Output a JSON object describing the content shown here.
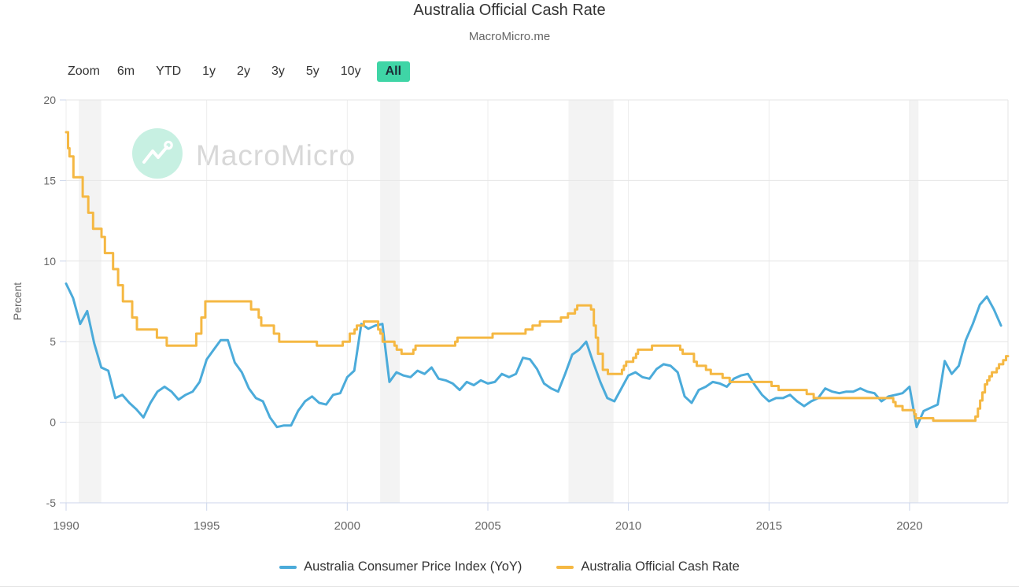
{
  "header": {
    "title": "Australia Official Cash Rate",
    "subtitle": "MacroMicro.me"
  },
  "range_selector": {
    "zoom_label": "Zoom",
    "buttons": [
      "6m",
      "YTD",
      "1y",
      "2y",
      "3y",
      "5y",
      "10y",
      "All"
    ],
    "selected": "All",
    "selected_bg": "#3fd5a6",
    "selected_text": "#1c2b36"
  },
  "watermark": {
    "text": "MacroMicro",
    "icon": "macromicro-logo-icon",
    "icon_bg": "#c7f0e2",
    "text_color": "#d8d8d8"
  },
  "colors": {
    "cpi_line": "#4babda",
    "cash_rate_line": "#f5b843",
    "plot_band": "#efefef",
    "grid_h": "#e6e6e6",
    "grid_v": "#ededed",
    "axis_line": "#ccd6eb",
    "tick_label": "#666666",
    "right_border": "#e6e6e6"
  },
  "chart_data": {
    "type": "line",
    "title": "Australia Official Cash Rate",
    "subtitle": "MacroMicro.me",
    "xlabel": "",
    "ylabel": "Percent",
    "ylim": [
      -5,
      20
    ],
    "xlim": [
      1990,
      2023.5
    ],
    "yticks": [
      20,
      15,
      10,
      5,
      0,
      -5
    ],
    "xticks": [
      1990,
      1995,
      2000,
      2005,
      2010,
      2015,
      2020
    ],
    "grid": true,
    "legend_position": "bottom",
    "plot_bands": [
      [
        1990.45,
        1991.25
      ],
      [
        2001.17,
        2001.87
      ],
      [
        2007.87,
        2009.47
      ],
      [
        2020.0,
        2020.32
      ]
    ],
    "series": [
      {
        "name": "Australia Consumer Price Index (YoY)",
        "color": "#4babda",
        "interpolation": "linear",
        "unit": "percent",
        "x_start": 1990,
        "x_step": 0.25,
        "values": [
          8.6,
          7.7,
          6.1,
          6.9,
          4.9,
          3.4,
          3.2,
          1.5,
          1.7,
          1.2,
          0.8,
          0.3,
          1.2,
          1.9,
          2.2,
          1.9,
          1.4,
          1.7,
          1.9,
          2.5,
          3.9,
          4.5,
          5.1,
          5.1,
          3.7,
          3.1,
          2.1,
          1.5,
          1.3,
          0.3,
          -0.3,
          -0.2,
          -0.2,
          0.7,
          1.3,
          1.6,
          1.2,
          1.1,
          1.7,
          1.8,
          2.8,
          3.2,
          6.1,
          5.8,
          6.0,
          6.1,
          2.5,
          3.1,
          2.9,
          2.8,
          3.2,
          3.0,
          3.4,
          2.7,
          2.6,
          2.4,
          2.0,
          2.5,
          2.3,
          2.6,
          2.4,
          2.5,
          3.0,
          2.8,
          3.0,
          4.0,
          3.9,
          3.3,
          2.4,
          2.1,
          1.9,
          3.0,
          4.2,
          4.5,
          5.0,
          3.7,
          2.5,
          1.5,
          1.3,
          2.1,
          2.9,
          3.1,
          2.8,
          2.7,
          3.3,
          3.6,
          3.5,
          3.1,
          1.6,
          1.2,
          2.0,
          2.2,
          2.5,
          2.4,
          2.2,
          2.7,
          2.9,
          3.0,
          2.3,
          1.7,
          1.3,
          1.5,
          1.5,
          1.7,
          1.3,
          1.0,
          1.3,
          1.5,
          2.1,
          1.9,
          1.8,
          1.9,
          1.9,
          2.1,
          1.9,
          1.8,
          1.3,
          1.6,
          1.7,
          1.8,
          2.2,
          -0.3,
          0.7,
          0.9,
          1.1,
          3.8,
          3.0,
          3.5,
          5.1,
          6.1,
          7.3,
          7.8,
          7.0,
          6.0
        ]
      },
      {
        "name": "Australia Official Cash Rate",
        "color": "#f5b843",
        "interpolation": "step-after",
        "unit": "percent",
        "points": [
          [
            1990.0,
            18.0
          ],
          [
            1990.07,
            17.0
          ],
          [
            1990.12,
            16.5
          ],
          [
            1990.26,
            15.2
          ],
          [
            1990.59,
            14.0
          ],
          [
            1990.79,
            13.0
          ],
          [
            1990.96,
            12.0
          ],
          [
            1991.26,
            11.5
          ],
          [
            1991.38,
            10.5
          ],
          [
            1991.67,
            9.5
          ],
          [
            1991.85,
            8.5
          ],
          [
            1992.02,
            7.5
          ],
          [
            1992.35,
            6.5
          ],
          [
            1992.52,
            5.75
          ],
          [
            1993.23,
            5.25
          ],
          [
            1993.58,
            4.75
          ],
          [
            1994.63,
            5.5
          ],
          [
            1994.81,
            6.5
          ],
          [
            1994.95,
            7.5
          ],
          [
            1996.58,
            7.0
          ],
          [
            1996.85,
            6.5
          ],
          [
            1996.94,
            6.0
          ],
          [
            1997.39,
            5.5
          ],
          [
            1997.58,
            5.0
          ],
          [
            1998.92,
            4.75
          ],
          [
            1999.84,
            5.0
          ],
          [
            2000.09,
            5.5
          ],
          [
            2000.26,
            5.75
          ],
          [
            2000.34,
            6.0
          ],
          [
            2000.59,
            6.25
          ],
          [
            2001.1,
            5.75
          ],
          [
            2001.18,
            5.5
          ],
          [
            2001.26,
            5.0
          ],
          [
            2001.68,
            4.75
          ],
          [
            2001.76,
            4.5
          ],
          [
            2001.93,
            4.25
          ],
          [
            2002.35,
            4.5
          ],
          [
            2002.43,
            4.75
          ],
          [
            2003.84,
            5.0
          ],
          [
            2003.92,
            5.25
          ],
          [
            2005.17,
            5.5
          ],
          [
            2006.34,
            5.75
          ],
          [
            2006.59,
            6.0
          ],
          [
            2006.85,
            6.25
          ],
          [
            2007.6,
            6.5
          ],
          [
            2007.85,
            6.75
          ],
          [
            2008.1,
            7.0
          ],
          [
            2008.18,
            7.25
          ],
          [
            2008.67,
            7.0
          ],
          [
            2008.77,
            6.0
          ],
          [
            2008.84,
            5.25
          ],
          [
            2008.92,
            4.25
          ],
          [
            2009.09,
            3.25
          ],
          [
            2009.27,
            3.0
          ],
          [
            2009.77,
            3.25
          ],
          [
            2009.84,
            3.5
          ],
          [
            2009.92,
            3.75
          ],
          [
            2010.17,
            4.0
          ],
          [
            2010.27,
            4.25
          ],
          [
            2010.34,
            4.5
          ],
          [
            2010.84,
            4.75
          ],
          [
            2011.84,
            4.5
          ],
          [
            2011.93,
            4.25
          ],
          [
            2012.33,
            3.75
          ],
          [
            2012.43,
            3.5
          ],
          [
            2012.76,
            3.25
          ],
          [
            2012.93,
            3.0
          ],
          [
            2013.35,
            2.75
          ],
          [
            2013.6,
            2.5
          ],
          [
            2015.09,
            2.25
          ],
          [
            2015.34,
            2.0
          ],
          [
            2016.34,
            1.75
          ],
          [
            2016.59,
            1.5
          ],
          [
            2019.42,
            1.25
          ],
          [
            2019.5,
            1.0
          ],
          [
            2019.75,
            0.75
          ],
          [
            2020.17,
            0.5
          ],
          [
            2020.22,
            0.25
          ],
          [
            2020.84,
            0.1
          ],
          [
            2022.34,
            0.35
          ],
          [
            2022.43,
            0.85
          ],
          [
            2022.51,
            1.35
          ],
          [
            2022.59,
            1.85
          ],
          [
            2022.68,
            2.35
          ],
          [
            2022.76,
            2.6
          ],
          [
            2022.84,
            2.85
          ],
          [
            2022.93,
            3.1
          ],
          [
            2023.1,
            3.35
          ],
          [
            2023.18,
            3.6
          ],
          [
            2023.33,
            3.85
          ],
          [
            2023.43,
            4.1
          ],
          [
            2023.5,
            4.1
          ]
        ]
      }
    ]
  },
  "legend": {
    "items": [
      {
        "label": "Australia Consumer Price Index (YoY)",
        "color": "#4babda"
      },
      {
        "label": "Australia Official Cash Rate",
        "color": "#f5b843"
      }
    ]
  }
}
